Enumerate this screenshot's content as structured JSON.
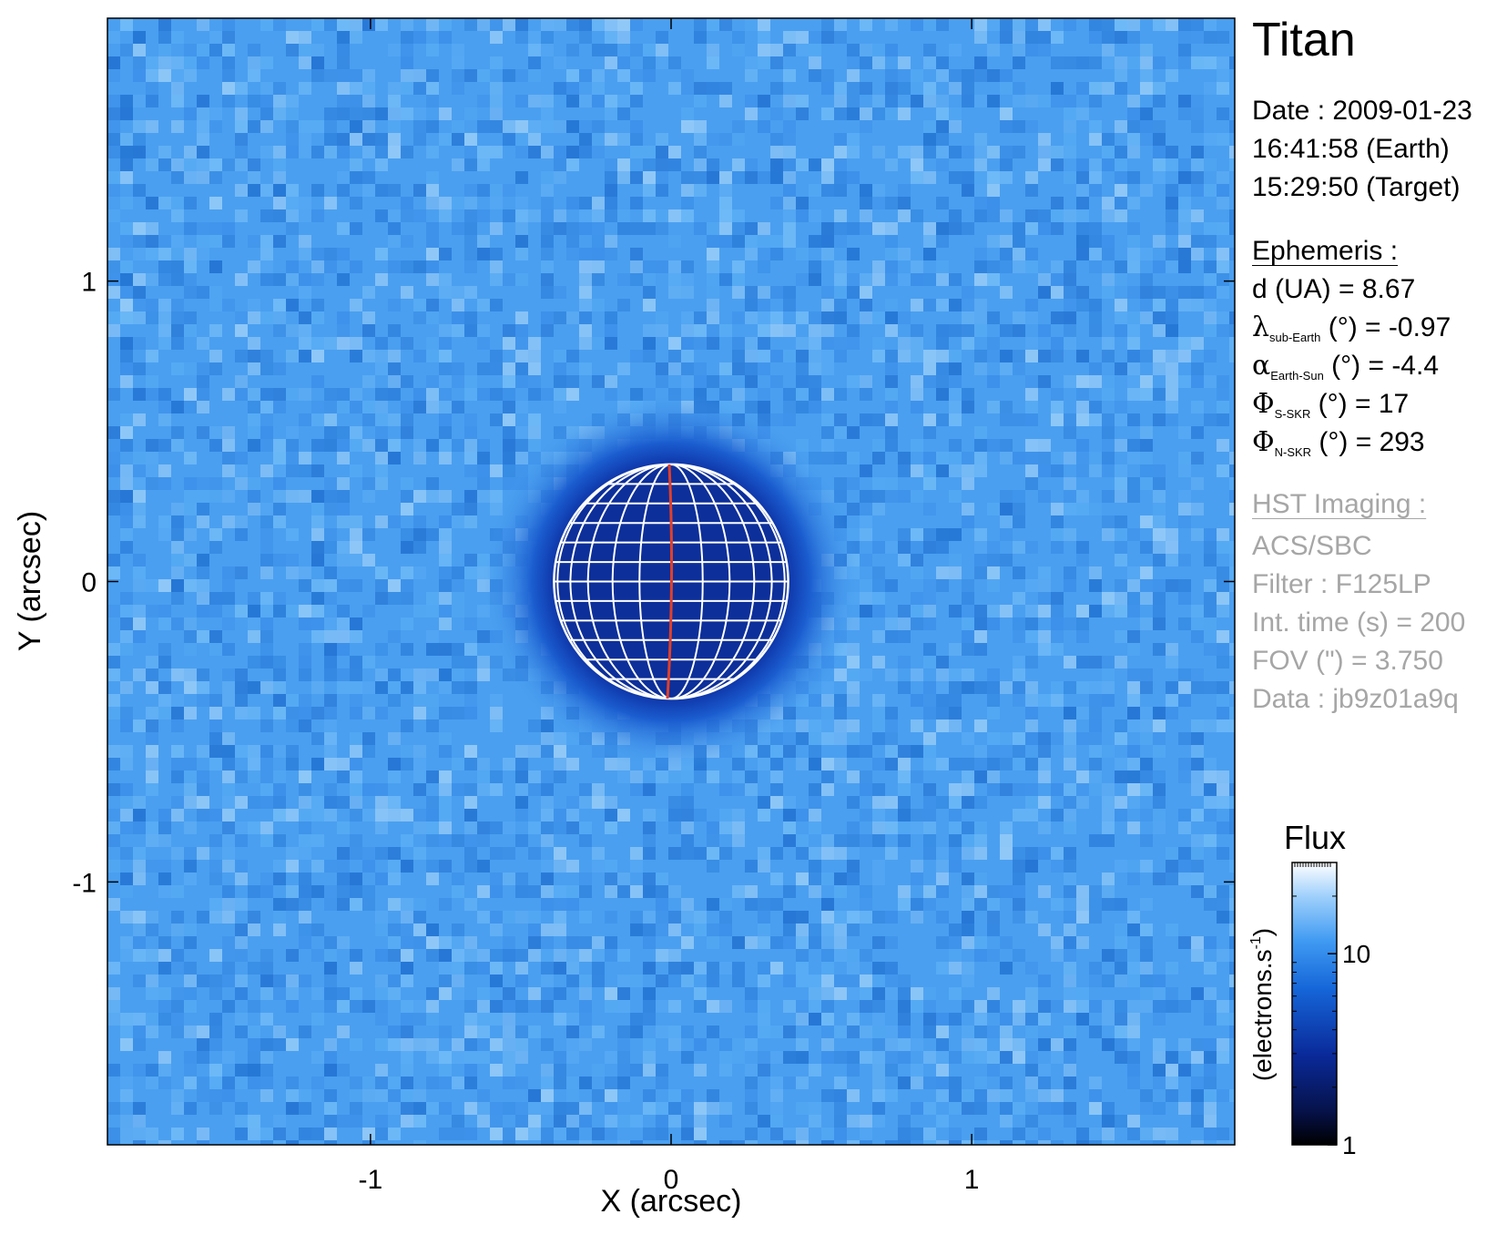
{
  "colors": {
    "background_sky": "#4a9ff0",
    "disk_dark": "#0d2f9a",
    "grid": "#ffffff",
    "central_meridian": "#e0402a",
    "info_gray": "#a6a6a6",
    "colormap": [
      "#000000",
      "#0a1f7a",
      "#1565d8",
      "#4aa3f5",
      "#bfe2ff",
      "#ffffff"
    ]
  },
  "chart_data": {
    "type": "heatmap",
    "title": "Titan",
    "xlabel": "X (arcsec)",
    "ylabel": "Y (arcsec)",
    "xlim": [
      -1.875,
      1.875
    ],
    "ylim": [
      -1.875,
      1.875
    ],
    "x_ticks": [
      -1,
      0,
      1
    ],
    "x_tick_labels": [
      "-1",
      "0",
      "1"
    ],
    "y_ticks": [
      -1,
      0,
      1
    ],
    "y_tick_labels": [
      "-1",
      "0",
      "1"
    ],
    "disk": {
      "center": [
        0,
        0
      ],
      "radius_arcsec": 0.41
    },
    "colorbar": {
      "title": "Flux",
      "label": "(electrons.s",
      "label_sup": "-1",
      "label_close": ")",
      "scale": "log",
      "range": [
        1,
        30
      ],
      "ticks": [
        1,
        10
      ],
      "tick_labels": [
        "1",
        "10"
      ]
    }
  },
  "info": {
    "target": "Titan",
    "date": "Date : 2009-01-23",
    "earth_time": "16:41:58 (Earth)",
    "target_time": "15:29:50 (Target)",
    "ephemeris_header": "Ephemeris :",
    "distance": "d (UA)    = 8.67",
    "lambda_symbol": "λ",
    "lambda_sub": "sub-Earth",
    "lambda_value": " (°) = -0.97",
    "alpha_symbol": "α",
    "alpha_sub": "Earth-Sun",
    "alpha_value": " (°) = -4.4",
    "phi_s_symbol": "Φ",
    "phi_s_sub": "S-SKR",
    "phi_s_value": " (°)   = 17",
    "phi_n_symbol": "Φ",
    "phi_n_sub": "N-SKR",
    "phi_n_value": " (°)   = 293",
    "hst_header": "HST Imaging :",
    "instrument": "ACS/SBC",
    "filter": "Filter : F125LP",
    "int_time": "Int. time (s) = 200",
    "fov": "FOV (\") = 3.750",
    "data_id": "Data : jb9z01a9q"
  }
}
